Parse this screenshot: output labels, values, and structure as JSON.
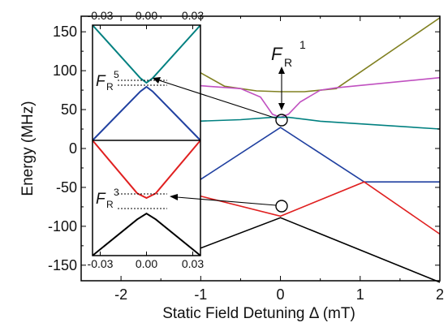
{
  "chart_data": [
    {
      "type": "line",
      "xlabel": "Static Field Detuning Δ (mT)",
      "ylabel": "Energy (MHz)",
      "xlim": [
        -2.5,
        2.0
      ],
      "ylim": [
        -170,
        170
      ],
      "xticks": [
        -2,
        -1,
        0,
        1,
        2
      ],
      "yticks": [
        -150,
        -100,
        -50,
        0,
        50,
        100,
        150
      ],
      "xtick_labels": [
        "-2",
        "-1",
        "0",
        "1",
        "2"
      ],
      "ytick_labels": [
        "-150",
        "-100",
        "-50",
        "0",
        "50",
        "100",
        "150"
      ],
      "grid": false,
      "series": [
        {
          "color": "#808020",
          "x": [
            -1.05,
            -0.7,
            -0.3,
            0.0,
            0.3,
            0.7,
            2.0
          ],
          "y": [
            100,
            80,
            74,
            73,
            73,
            77,
            168
          ]
        },
        {
          "color": "#c050c0",
          "x": [
            -1.05,
            -0.5,
            -0.25,
            -0.1,
            0.0,
            0.1,
            0.25,
            0.5,
            0.7,
            2.0
          ],
          "y": [
            81,
            77,
            66,
            44,
            40,
            44,
            60,
            75,
            78,
            91
          ]
        },
        {
          "color": "#008080",
          "x": [
            -1.05,
            -0.5,
            -0.1,
            0.0,
            0.1,
            0.5,
            2.0
          ],
          "y": [
            35,
            37,
            40,
            40,
            40,
            35,
            25
          ]
        },
        {
          "color": "#2040a0",
          "x": [
            -1.05,
            0.0,
            1.05,
            2.0
          ],
          "y": [
            -43,
            27,
            -43,
            -43
          ]
        },
        {
          "color": "#e02020",
          "x": [
            -1.05,
            0.0,
            1.05,
            2.0
          ],
          "y": [
            -60,
            -87,
            -43,
            -110
          ]
        },
        {
          "color": "#000000",
          "x": [
            -1.05,
            0.0,
            2.0
          ],
          "y": [
            -130,
            -89,
            -172
          ]
        }
      ],
      "annotations": [
        {
          "label": "F",
          "subscript": "R",
          "superscript": "1",
          "target_x": 0.0,
          "target_y": 57
        }
      ]
    },
    {
      "type": "line",
      "xlim": [
        -0.035,
        0.035
      ],
      "xtick_labels_top": [
        "-0.03",
        "0.00",
        "0.03"
      ],
      "xtick_labels_bottom": [
        "-0.03",
        "0.00",
        "0.03"
      ],
      "xticks": [
        -0.03,
        0.0,
        0.03
      ],
      "panels": [
        {
          "label": "F",
          "subscript": "R",
          "superscript": "5",
          "series": [
            {
              "color": "#008080",
              "x": [
                -0.035,
                -0.004,
                0.0,
                0.004,
                0.035
              ],
              "y": [
                1.0,
                0.08,
                0.0,
                0.08,
                1.0
              ]
            },
            {
              "color": "#2040a0",
              "x": [
                -0.035,
                -0.004,
                0.0,
                0.004,
                0.035
              ],
              "y": [
                -1.0,
                -0.15,
                -0.07,
                -0.15,
                -1.0
              ]
            }
          ]
        },
        {
          "label": "F",
          "subscript": "R",
          "superscript": "3",
          "series": [
            {
              "color": "#e02020",
              "x": [
                -0.035,
                -0.006,
                0.0,
                0.006,
                0.035
              ],
              "y": [
                1.0,
                0.08,
                0.0,
                0.08,
                1.0
              ]
            },
            {
              "color": "#000000",
              "x": [
                -0.035,
                -0.006,
                0.0,
                0.006,
                0.035
              ],
              "y": [
                -1.0,
                -0.37,
                -0.27,
                -0.37,
                -1.0
              ]
            }
          ]
        }
      ]
    }
  ]
}
